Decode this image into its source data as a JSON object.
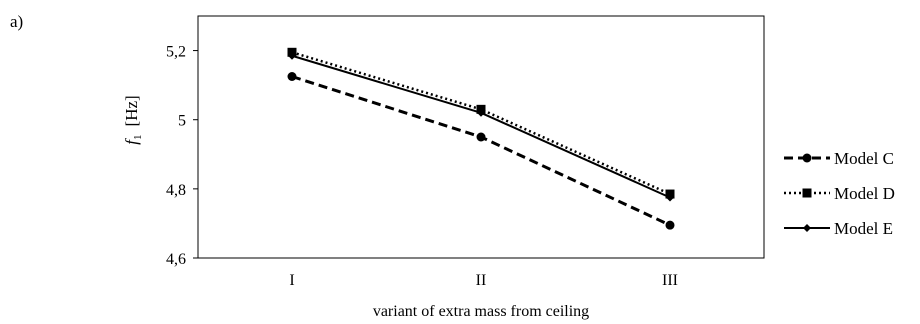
{
  "panel_label": "a)",
  "chart_data": {
    "type": "line",
    "title": "",
    "xlabel": "variant of extra mass from ceiling",
    "ylabel_symbol": "f",
    "ylabel_subscript": "1",
    "ylabel_unit": "[Hz]",
    "categories": [
      "I",
      "II",
      "III"
    ],
    "ylim": [
      4.6,
      5.3
    ],
    "yticks": [
      4.6,
      4.8,
      5.0,
      5.2
    ],
    "ytick_labels": [
      "4,6",
      "4,8",
      "5",
      "5,2"
    ],
    "grid": false,
    "legend_position": "right",
    "series": [
      {
        "name": "Model C",
        "values": [
          5.125,
          4.95,
          4.695
        ],
        "dash": "dashed",
        "marker": "circle"
      },
      {
        "name": "Model D",
        "values": [
          5.195,
          5.03,
          4.785
        ],
        "dash": "dotted",
        "marker": "square"
      },
      {
        "name": "Model E",
        "values": [
          5.185,
          5.02,
          4.775
        ],
        "dash": "solid",
        "marker": "diamond"
      }
    ]
  }
}
